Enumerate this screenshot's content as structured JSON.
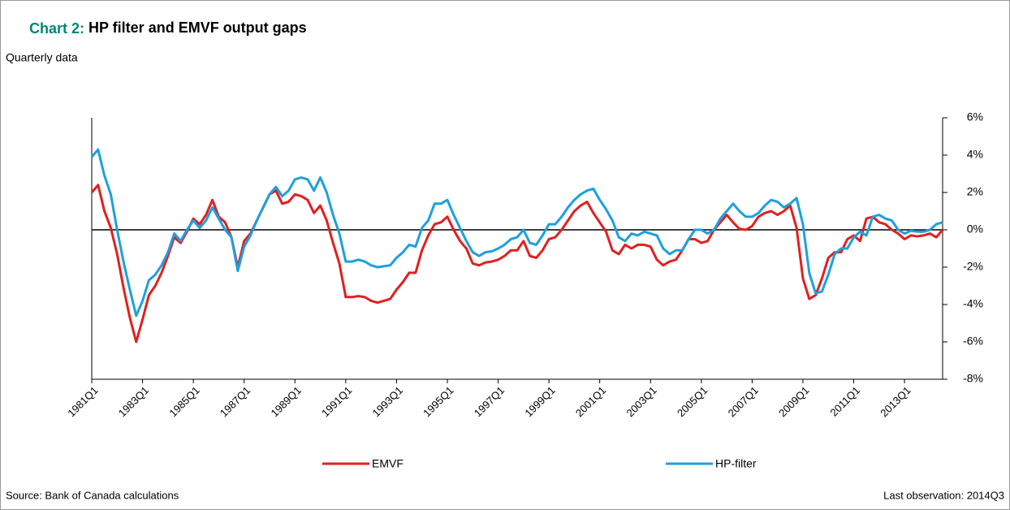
{
  "chart_data": {
    "type": "line",
    "label": "Chart 2:",
    "title": "HP filter and EMVF output gaps",
    "subtitle": "Quarterly data",
    "source": "Source: Bank of Canada calculations",
    "note": "Last observation: 2014Q3",
    "categories": [
      "1981Q1",
      null,
      null,
      null,
      null,
      null,
      null,
      null,
      "1983Q1",
      null,
      null,
      null,
      null,
      null,
      null,
      null,
      "1985Q1",
      null,
      null,
      null,
      null,
      null,
      null,
      null,
      "1987Q1",
      null,
      null,
      null,
      null,
      null,
      null,
      null,
      "1989Q1",
      null,
      null,
      null,
      null,
      null,
      null,
      null,
      "1991Q1",
      null,
      null,
      null,
      null,
      null,
      null,
      null,
      "1993Q1",
      null,
      null,
      null,
      null,
      null,
      null,
      null,
      "1995Q1",
      null,
      null,
      null,
      null,
      null,
      null,
      null,
      "1997Q1",
      null,
      null,
      null,
      null,
      null,
      null,
      null,
      "1999Q1",
      null,
      null,
      null,
      null,
      null,
      null,
      null,
      "2001Q1",
      null,
      null,
      null,
      null,
      null,
      null,
      null,
      "2003Q1",
      null,
      null,
      null,
      null,
      null,
      null,
      null,
      "2005Q1",
      null,
      null,
      null,
      null,
      null,
      null,
      null,
      "2007Q1",
      null,
      null,
      null,
      null,
      null,
      null,
      null,
      "2009Q1",
      null,
      null,
      null,
      null,
      null,
      null,
      null,
      "2011Q1",
      null,
      null,
      null,
      null,
      null,
      null,
      null,
      "2013Q1",
      null,
      null,
      null,
      null,
      null,
      null
    ],
    "series": [
      {
        "name": "EMVF",
        "color": "#e02020",
        "values": [
          2.0,
          2.4,
          1.0,
          0.1,
          -1.3,
          -3.1,
          -4.7,
          -6.0,
          -4.8,
          -3.5,
          -3.0,
          -2.3,
          -1.4,
          -0.4,
          -0.7,
          -0.1,
          0.6,
          0.3,
          0.8,
          1.6,
          0.7,
          0.4,
          -0.4,
          -2.0,
          -0.6,
          -0.2,
          0.5,
          1.2,
          1.9,
          2.1,
          1.4,
          1.5,
          1.9,
          1.8,
          1.6,
          0.9,
          1.3,
          0.5,
          -0.7,
          -1.8,
          -3.6,
          -3.6,
          -3.55,
          -3.6,
          -3.8,
          -3.9,
          -3.8,
          -3.7,
          -3.2,
          -2.8,
          -2.3,
          -2.3,
          -1.1,
          -0.3,
          0.3,
          0.4,
          0.7,
          0.0,
          -0.6,
          -1.0,
          -1.8,
          -1.9,
          -1.75,
          -1.7,
          -1.6,
          -1.4,
          -1.1,
          -1.1,
          -0.6,
          -1.4,
          -1.5,
          -1.1,
          -0.5,
          -0.4,
          0.0,
          0.5,
          1.0,
          1.3,
          1.5,
          0.9,
          0.4,
          -0.1,
          -1.1,
          -1.3,
          -0.8,
          -1.0,
          -0.8,
          -0.8,
          -0.9,
          -1.6,
          -1.9,
          -1.7,
          -1.6,
          -1.1,
          -0.5,
          -0.5,
          -0.7,
          -0.6,
          0.0,
          0.4,
          0.8,
          0.4,
          0.05,
          0.0,
          0.2,
          0.7,
          0.9,
          1.0,
          0.8,
          1.0,
          1.3,
          0.1,
          -2.6,
          -3.7,
          -3.5,
          -2.6,
          -1.5,
          -1.2,
          -1.2,
          -0.5,
          -0.3,
          -0.6,
          0.6,
          0.7,
          0.4,
          0.3,
          0.0,
          -0.2,
          -0.5,
          -0.3,
          -0.35,
          -0.3,
          -0.2,
          -0.4,
          0.0
        ]
      },
      {
        "name": "HP-filter",
        "color": "#1ea0dc",
        "values": [
          3.9,
          4.3,
          2.9,
          1.9,
          0.0,
          -1.7,
          -3.2,
          -4.6,
          -3.8,
          -2.7,
          -2.4,
          -1.9,
          -1.2,
          -0.2,
          -0.6,
          0.0,
          0.5,
          0.1,
          0.5,
          1.2,
          0.6,
          0.0,
          -0.4,
          -2.2,
          -0.9,
          -0.3,
          0.5,
          1.2,
          1.9,
          2.3,
          1.8,
          2.1,
          2.7,
          2.8,
          2.7,
          2.1,
          2.8,
          2.0,
          0.8,
          -0.2,
          -1.7,
          -1.7,
          -1.6,
          -1.7,
          -1.9,
          -2.0,
          -1.95,
          -1.9,
          -1.5,
          -1.2,
          -0.8,
          -0.9,
          0.1,
          0.5,
          1.4,
          1.4,
          1.6,
          0.8,
          0.1,
          -0.6,
          -1.2,
          -1.4,
          -1.2,
          -1.15,
          -1.0,
          -0.8,
          -0.5,
          -0.4,
          0.0,
          -0.7,
          -0.8,
          -0.3,
          0.3,
          0.3,
          0.7,
          1.2,
          1.6,
          1.9,
          2.1,
          2.2,
          1.6,
          1.1,
          0.5,
          -0.4,
          -0.6,
          -0.2,
          -0.3,
          -0.1,
          -0.2,
          -0.3,
          -1.0,
          -1.3,
          -1.1,
          -1.1,
          -0.5,
          0.0,
          0.0,
          -0.2,
          0.0,
          0.6,
          1.0,
          1.4,
          1.0,
          0.7,
          0.7,
          0.9,
          1.3,
          1.6,
          1.5,
          1.2,
          1.4,
          1.7,
          0.3,
          -2.3,
          -3.4,
          -3.3,
          -2.4,
          -1.3,
          -1.0,
          -1.0,
          -0.4,
          -0.1,
          -0.3,
          0.7,
          0.8,
          0.6,
          0.5,
          0.0,
          -0.2,
          -0.05,
          -0.1,
          -0.1,
          0.0,
          0.3,
          0.4
        ]
      }
    ],
    "ylim": [
      -8,
      6
    ],
    "yticks": [
      {
        "value": -8,
        "label": "-8%"
      },
      {
        "value": -6,
        "label": "-6%"
      },
      {
        "value": -4,
        "label": "-4%"
      },
      {
        "value": -2,
        "label": "-2%"
      },
      {
        "value": 0,
        "label": "0%"
      },
      {
        "value": 2,
        "label": "2%"
      },
      {
        "value": 4,
        "label": "4%"
      },
      {
        "value": 6,
        "label": "6%"
      }
    ]
  }
}
